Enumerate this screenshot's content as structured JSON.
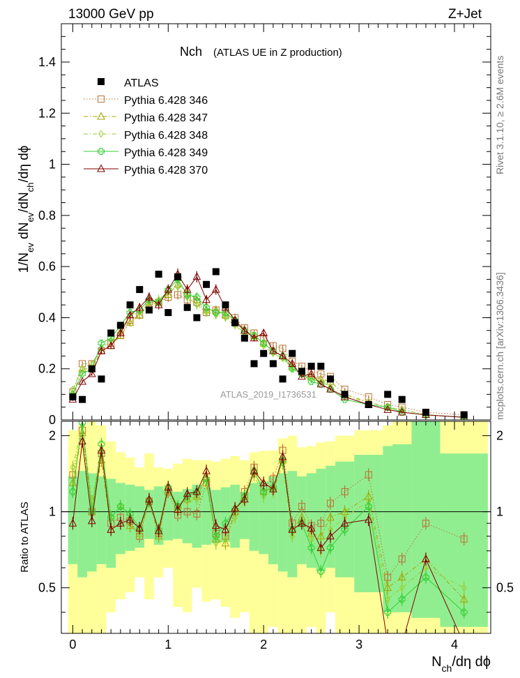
{
  "header": {
    "beam_label": "13000 GeV pp",
    "process_label": "Z+Jet"
  },
  "side_labels": {
    "rivet": "Rivet 3.1.10, ≥ 2.6M events",
    "mcplots": "mcplots.cern.ch [arXiv:1306.3436]"
  },
  "watermark": "ATLAS_2019_I1736531",
  "chart_data": [
    {
      "type": "scatter",
      "title_main": "Nch",
      "title_sub": "(ATLAS UE in Z production)",
      "ylabel": "1/N_ev dN_ev/dN_ch/dη dϕ",
      "xlim": [
        -0.12,
        4.38
      ],
      "ylim": [
        0,
        1.55
      ],
      "yticks": [
        "0.2",
        "0.4",
        "0.6",
        "0.8",
        "1",
        "1.2",
        "1.4"
      ],
      "yticks_values": [
        0.2,
        0.4,
        0.6,
        0.8,
        1.0,
        1.2,
        1.4
      ],
      "ytick_zero_label": "0",
      "legend_position": "top-left",
      "data_series": {
        "name": "ATLAS",
        "color": "#000000",
        "x": [
          0.0,
          0.1,
          0.2,
          0.3,
          0.4,
          0.5,
          0.6,
          0.7,
          0.8,
          0.9,
          1.0,
          1.1,
          1.2,
          1.3,
          1.4,
          1.5,
          1.6,
          1.7,
          1.8,
          1.9,
          2.0,
          2.1,
          2.2,
          2.3,
          2.4,
          2.5,
          2.6,
          2.7,
          2.85,
          3.1,
          3.3,
          3.45,
          3.7,
          4.1
        ],
        "y": [
          0.09,
          0.08,
          0.2,
          0.16,
          0.34,
          0.37,
          0.45,
          0.51,
          0.43,
          0.57,
          0.42,
          0.56,
          0.44,
          0.4,
          0.53,
          0.58,
          0.45,
          0.38,
          0.32,
          0.22,
          0.26,
          0.22,
          0.16,
          0.26,
          0.19,
          0.21,
          0.21,
          0.16,
          0.1,
          0.06,
          0.1,
          0.08,
          0.03,
          0.02
        ]
      },
      "series": [
        {
          "name": "Pythia 6.428 346",
          "color": "#b87333",
          "marker": "open-square",
          "line": "dotted",
          "y": [
            0.11,
            0.22,
            0.22,
            0.27,
            0.3,
            0.33,
            0.39,
            0.41,
            0.46,
            0.46,
            0.48,
            0.49,
            0.47,
            0.46,
            0.42,
            0.43,
            0.41,
            0.4,
            0.36,
            0.34,
            0.32,
            0.29,
            0.28,
            0.23,
            0.21,
            0.19,
            0.18,
            0.17,
            0.12,
            0.09,
            0.06,
            0.05,
            0.03,
            0.02
          ]
        },
        {
          "name": "Pythia 6.428 347",
          "color": "#a5a500",
          "marker": "open-triangle",
          "line": "dashdot",
          "y": [
            0.1,
            0.2,
            0.2,
            0.27,
            0.29,
            0.33,
            0.38,
            0.41,
            0.45,
            0.46,
            0.49,
            0.53,
            0.5,
            0.47,
            0.43,
            0.43,
            0.41,
            0.38,
            0.35,
            0.33,
            0.3,
            0.27,
            0.25,
            0.21,
            0.19,
            0.17,
            0.16,
            0.15,
            0.1,
            0.07,
            0.05,
            0.04,
            0.02,
            0.01
          ]
        },
        {
          "name": "Pythia 6.428 348",
          "color": "#9acd32",
          "marker": "open-diamond",
          "line": "dashdot",
          "y": [
            0.12,
            0.2,
            0.22,
            0.28,
            0.31,
            0.35,
            0.41,
            0.42,
            0.46,
            0.47,
            0.5,
            0.52,
            0.48,
            0.45,
            0.42,
            0.41,
            0.4,
            0.37,
            0.34,
            0.32,
            0.29,
            0.26,
            0.24,
            0.2,
            0.18,
            0.16,
            0.15,
            0.13,
            0.09,
            0.07,
            0.05,
            0.04,
            0.02,
            0.01
          ]
        },
        {
          "name": "Pythia 6.428 349",
          "color": "#32cd32",
          "marker": "open-cross",
          "line": "solid",
          "y": [
            0.1,
            0.18,
            0.2,
            0.3,
            0.32,
            0.37,
            0.42,
            0.43,
            0.47,
            0.46,
            0.51,
            0.55,
            0.49,
            0.48,
            0.44,
            0.42,
            0.42,
            0.39,
            0.35,
            0.33,
            0.3,
            0.27,
            0.25,
            0.2,
            0.18,
            0.15,
            0.14,
            0.12,
            0.08,
            0.06,
            0.05,
            0.03,
            0.02,
            0.01
          ]
        },
        {
          "name": "Pythia 6.428 370",
          "color": "#800000",
          "marker": "open-triangle",
          "line": "solid",
          "y": [
            0.08,
            0.15,
            0.18,
            0.27,
            0.29,
            0.34,
            0.41,
            0.44,
            0.48,
            0.45,
            0.51,
            0.57,
            0.51,
            0.56,
            0.47,
            0.51,
            0.44,
            0.39,
            0.35,
            0.32,
            0.34,
            0.27,
            0.25,
            0.22,
            0.17,
            0.18,
            0.14,
            0.12,
            0.09,
            0.06,
            0.04,
            0.03,
            0.02,
            0.01
          ]
        }
      ]
    },
    {
      "type": "line",
      "ylabel": "Ratio to ATLAS",
      "xlabel": "N_ch/dη dϕ",
      "xlim": [
        -0.12,
        4.38
      ],
      "ylim": [
        0.33,
        2.28
      ],
      "yticks": [
        "0.5",
        "1",
        "2"
      ],
      "yticks_values": [
        0.5,
        1.0,
        2.0
      ],
      "xticks": [
        "0",
        "1",
        "2",
        "3",
        "4"
      ],
      "xticks_values": [
        0,
        1,
        2,
        3,
        4
      ],
      "reference_line": 1.0,
      "bands": {
        "edges": [
          -0.05,
          0.05,
          0.15,
          0.25,
          0.35,
          0.45,
          0.55,
          0.65,
          0.75,
          0.85,
          0.95,
          1.05,
          1.15,
          1.25,
          1.35,
          1.45,
          1.55,
          1.65,
          1.75,
          1.85,
          1.95,
          2.05,
          2.15,
          2.25,
          2.35,
          2.45,
          2.55,
          2.65,
          2.75,
          2.95,
          3.25,
          3.35,
          3.55,
          3.85,
          4.35
        ],
        "green_low": [
          0.62,
          0.55,
          0.58,
          0.62,
          0.6,
          0.68,
          0.7,
          0.72,
          0.78,
          0.74,
          0.77,
          0.78,
          0.75,
          0.72,
          0.74,
          0.75,
          0.76,
          0.72,
          0.78,
          0.7,
          0.68,
          0.62,
          0.58,
          0.55,
          0.62,
          0.6,
          0.58,
          0.6,
          0.55,
          0.48,
          0.4,
          0.4,
          0.38,
          0.35
        ],
        "green_high": [
          1.38,
          1.45,
          1.42,
          1.38,
          1.35,
          1.3,
          1.28,
          1.26,
          1.22,
          1.26,
          1.22,
          1.2,
          1.23,
          1.28,
          1.25,
          1.22,
          1.25,
          1.28,
          1.2,
          1.3,
          1.32,
          1.38,
          1.42,
          1.45,
          1.38,
          1.42,
          1.48,
          1.52,
          1.58,
          1.68,
          1.82,
          1.85,
          2.28,
          1.7
        ],
        "yellow_low": [
          0.33,
          0.33,
          0.33,
          0.33,
          0.4,
          0.45,
          0.48,
          0.55,
          0.45,
          0.55,
          0.6,
          0.42,
          0.4,
          0.5,
          0.44,
          0.45,
          0.42,
          0.38,
          0.4,
          0.33,
          0.33,
          0.35,
          0.33,
          0.33,
          0.33,
          0.35,
          0.33,
          0.4,
          0.33,
          0.33,
          0.33,
          0.33,
          0.33,
          0.33
        ],
        "yellow_high": [
          2.1,
          2.2,
          2.28,
          2.2,
          1.9,
          1.72,
          1.64,
          1.5,
          1.7,
          1.5,
          1.48,
          1.55,
          1.62,
          1.6,
          1.6,
          1.58,
          1.62,
          1.66,
          1.6,
          1.72,
          1.74,
          1.75,
          1.95,
          2.0,
          1.8,
          1.82,
          1.88,
          1.9,
          2.0,
          2.1,
          2.2,
          2.28,
          2.28,
          2.28
        ]
      },
      "series": [
        {
          "name": "Pythia 6.428 346",
          "y": [
            1.4,
            2.1,
            1.0,
            1.7,
            0.9,
            0.95,
            0.92,
            0.8,
            1.1,
            0.82,
            1.2,
            0.97,
            1.0,
            0.98,
            1.3,
            0.82,
            0.8,
            1.0,
            1.2,
            1.5,
            1.25,
            1.35,
            1.75,
            0.9,
            1.05,
            0.88,
            0.9,
            1.08,
            1.2,
            1.4,
            0.55,
            0.65,
            0.9,
            0.78
          ]
        },
        {
          "name": "Pythia 6.428 347",
          "y": [
            1.3,
            2.05,
            1.0,
            1.6,
            0.85,
            0.9,
            0.88,
            0.82,
            1.1,
            0.8,
            1.22,
            1.05,
            1.12,
            1.15,
            1.35,
            0.78,
            0.75,
            1.0,
            1.15,
            1.45,
            1.2,
            1.25,
            1.6,
            0.85,
            0.95,
            0.82,
            0.8,
            0.95,
            1.0,
            1.15,
            0.5,
            0.55,
            0.65,
            0.45
          ]
        },
        {
          "name": "Pythia 6.428 348",
          "y": [
            1.5,
            2.2,
            1.1,
            1.75,
            0.95,
            1.05,
            0.95,
            0.84,
            1.12,
            0.84,
            1.25,
            1.0,
            1.1,
            1.12,
            1.3,
            0.75,
            0.78,
            0.95,
            1.1,
            1.4,
            1.15,
            1.2,
            1.55,
            0.8,
            0.92,
            0.78,
            0.7,
            0.85,
            0.95,
            1.1,
            0.45,
            0.5,
            0.6,
            0.5
          ]
        },
        {
          "name": "Pythia 6.428 349",
          "y": [
            1.2,
            2.25,
            1.0,
            1.85,
            0.95,
            1.05,
            0.98,
            0.86,
            1.1,
            0.85,
            1.25,
            1.05,
            1.15,
            1.2,
            1.35,
            0.8,
            0.9,
            1.02,
            1.15,
            1.45,
            1.2,
            1.25,
            1.6,
            0.85,
            0.9,
            0.72,
            0.58,
            0.72,
            0.85,
            1.05,
            0.4,
            0.45,
            0.55,
            0.4
          ]
        },
        {
          "name": "Pythia 6.428 370",
          "y": [
            0.9,
            1.9,
            0.92,
            1.75,
            0.85,
            0.9,
            0.93,
            0.86,
            1.12,
            0.84,
            1.25,
            1.02,
            1.18,
            1.2,
            1.45,
            0.88,
            0.85,
            1.03,
            1.12,
            1.45,
            1.3,
            1.23,
            1.65,
            0.85,
            0.9,
            0.86,
            0.72,
            0.8,
            0.9,
            0.93,
            0.3,
            0.3,
            0.65,
            0.3
          ]
        }
      ]
    }
  ]
}
